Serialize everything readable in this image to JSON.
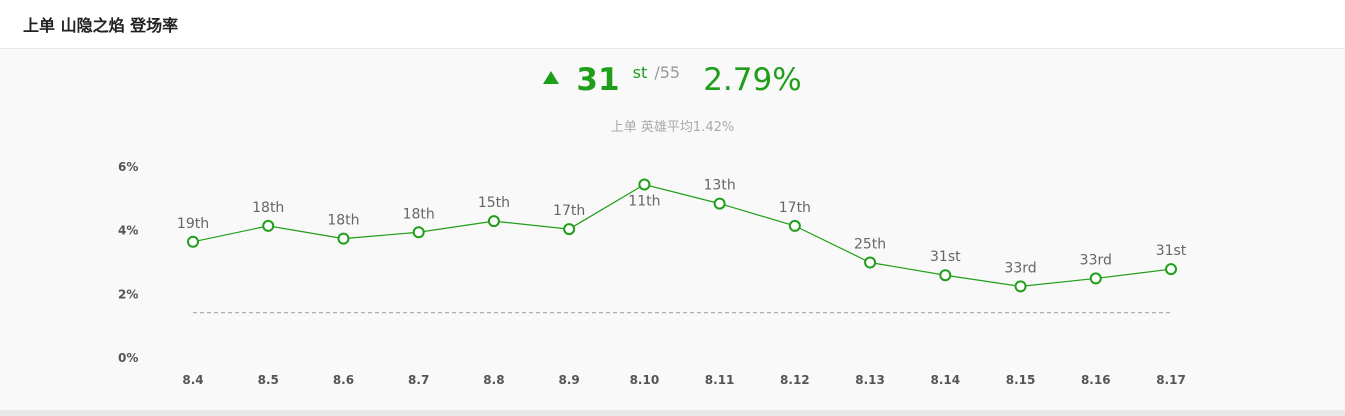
{
  "header": {
    "title": "上单 山隐之焰 登场率"
  },
  "summary": {
    "trend_icon": "triangle-up-icon",
    "rank": "31",
    "rank_suffix": "st",
    "rank_total": "/55",
    "rate": "2.79%",
    "avg_label": "上单 英雄平均1.42%"
  },
  "colors": {
    "accent": "#1f9e19",
    "line": "#1f9e19",
    "avg_line": "#999999"
  },
  "chart_data": {
    "type": "line",
    "categories": [
      "8.4",
      "8.5",
      "8.6",
      "8.7",
      "8.8",
      "8.9",
      "8.10",
      "8.11",
      "8.12",
      "8.13",
      "8.14",
      "8.15",
      "8.16",
      "8.17"
    ],
    "series": [
      {
        "values": [
          3.65,
          4.15,
          3.75,
          3.95,
          4.3,
          4.05,
          5.45,
          4.85,
          4.15,
          3.0,
          2.6,
          2.25,
          2.5,
          2.79
        ],
        "labels": [
          "19th",
          "18th",
          "18th",
          "18th",
          "15th",
          "17th",
          "11th",
          "13th",
          "17th",
          "25th",
          "31st",
          "33rd",
          "33rd",
          "31st"
        ]
      }
    ],
    "average": 1.42,
    "ylim": [
      0,
      6
    ],
    "yticks": [
      "0%",
      "2%",
      "4%",
      "6%"
    ],
    "ytick_values": [
      0,
      2,
      4,
      6
    ],
    "grid": false
  }
}
